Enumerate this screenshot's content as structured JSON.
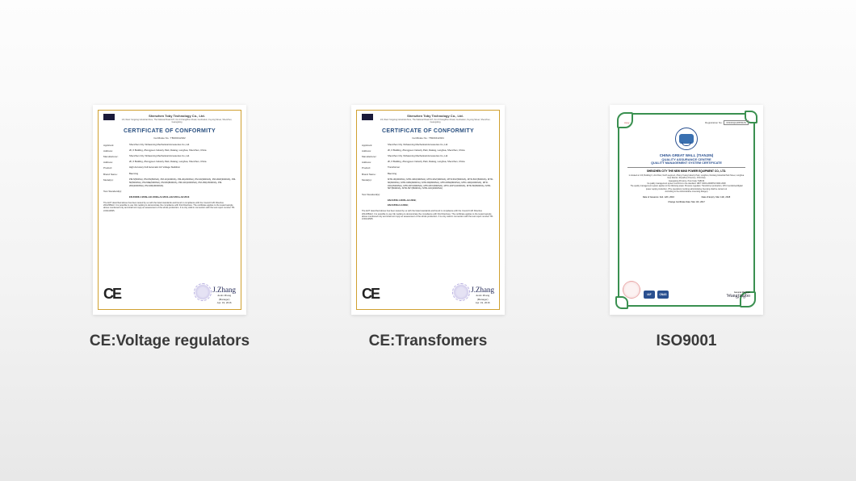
{
  "page": {
    "background_gradient": [
      "#fdfdfd",
      "#e8e8e8"
    ]
  },
  "certificates": [
    {
      "caption": "CE:Voltage regulators",
      "type": "ce",
      "border_color": "#d0a030",
      "company_name": "Shenzhen Toby Technology Co., Ltd.",
      "company_addr": "1/F, West Yongxing Industrial Zone, The National Road 107, No.4 ChangZhen Road, Guohualun, Fuyong Street, Shenzhen, Guangdong",
      "title": "CERTIFICATE OF CONFORMITY",
      "title_color": "#2a5080",
      "cert_no_label": "Certificate No.:",
      "cert_no": "TB160412022",
      "fields": [
        {
          "label": "Applicant:",
          "value": "Shenzhen City Xinbaoming Mechanical Accessories Co.,Ltd."
        },
        {
          "label": "Address:",
          "value": "2F, 6 Building, Zhongyuen Industry Park, Dalang, Longhua, Shenzhen, China"
        },
        {
          "label": "Manufacturer:",
          "value": "Shenzhen City Xinbaoming Mechanical Accessories Co.,Ltd."
        },
        {
          "label": "Address:",
          "value": "2F, 6 Building, Zhongyuen Industry Park, Dalang, Longhua, Shenzhen, China"
        },
        {
          "label": "Product:",
          "value": "High Accuracy Full Automatic AC Voltage Stabilizer"
        },
        {
          "label": "Brand Name:",
          "value": "Baoming"
        },
        {
          "label": "Model(s):",
          "value": "PM-5(500VA), PM-5N(500VA), PM-10(1000VA), PM-20(2000VA), PM-30(3000VA), PM-30W(3000VA), PM-50(5000VA), PM-50E(5000VA), PM-80(8000VA), PM-100(10000VA), PM-150(15000VA), PM-200(20000VA), PM-300(30000VA)"
        },
        {
          "label": "Test Standard(s):",
          "value": ""
        },
        {
          "label": "",
          "value": "EN 60068-1:2009+A11:2009+A1:2010+A12:2011+A2:2013"
        }
      ],
      "paragraph": "The EUT described above has been tested by us with the listed standards and found in compliance with the Council LVD Directive 2014/35/EU. It is possible to use CE marking to demonstrate the compliance with this Directives. The certificate applies to the tested sample above mentioned only and shall not imply an assessment of the whole production. It is only valid in connection with the test report number TB-LVD141565.",
      "ce_mark": "CE",
      "signer_name": "Justin Zhang",
      "signer_title": "(Manager)",
      "sign_date": "Apr. 19, 2016",
      "signature": "J.Zhang"
    },
    {
      "caption": "CE:Transfomers",
      "type": "ce",
      "border_color": "#d0a030",
      "company_name": "Shenzhen Toby Technology Co., Ltd.",
      "company_addr": "1/F, West Yongxing Industrial Zone, The National Road 107, No.4 ChangZhen Road, Guohualun, Fuyong Street, Shenzhen, Guangdong",
      "title": "CERTIFICATE OF CONFORMITY",
      "title_color": "#2a5090",
      "cert_no_label": "Certificate No.:",
      "cert_no": "TB160412024",
      "fields": [
        {
          "label": "Applicant:",
          "value": "Shenzhen City Xinbaoming Mechanical Accessories Co.,Ltd."
        },
        {
          "label": "Address:",
          "value": "2F, 6 Building, Zhongyuen Industry Park, Dalang, Longhua, Shenzhen, China"
        },
        {
          "label": "Manufacturer:",
          "value": "Shenzhen City Xinbaoming Mechanical Accessories Co.,Ltd."
        },
        {
          "label": "Address:",
          "value": "2F, 6 Building, Zhongyuen Industry Park, Dalang, Longhua, Shenzhen, China"
        },
        {
          "label": "Product:",
          "value": "Transformer"
        },
        {
          "label": "Brand Name:",
          "value": "Baoming"
        },
        {
          "label": "Model(s):",
          "value": "MTD-30(3000VA), MTD-30N(3000VA), MTD-30V(3000VA), MTD-50V(5000VA), MTD-50V(5000VA), MTD-60(6000VA), MTD-60W(6000VA), MTD-80(8000VA), MTD-80W(8000VA), MTD-100(10000VA), MTD-150(15000VA), MTD-80Y(8000VA), MTD-80Y(8000VA), MTD-100Y(10000VA), MTD-50(5000VA), MTD-50T(5000VA), MTD-50Y(5000VA), MTD-100(10000VA)"
        },
        {
          "label": "Test Standard(s):",
          "value": ""
        },
        {
          "label": "",
          "value": "EN 61558-1:2005+A1:2009;"
        },
        {
          "label": "",
          "value": "EN 61558-2-4:2009;"
        }
      ],
      "paragraph": "The EUT described above has been tested by us with the listed standards and found in compliance with the Council LVD Directive 2014/35/EU. It is possible to use CE marking to demonstrate the compliance with this Directives. The certificate applies to the tested sample above mentioned only and shall not imply an assessment of the whole production. It is only valid in connection with the test report number TB-LVD141565.",
      "ce_mark": "CE",
      "signer_name": "Justin Zhang",
      "signer_title": "(Manager)",
      "sign_date": "Apr. 19, 2016",
      "signature": "J.Zhang"
    },
    {
      "caption": "ISO9001",
      "type": "iso",
      "border_color": "#3a9050",
      "copy_label": "copy",
      "reg_label": "Registration No.:",
      "reg_no": "00916Q11887R2S",
      "heading1": "CHINA GREAT WALL (TIANJIN)",
      "heading2": "QUALITY ASSURANCE CENTRE",
      "heading3": "QUALITY MANAGEMENT SYSTEM CERTIFICATE",
      "company": "SHENZHEN CITY THE NEW MING POWER EQUIPMENT CO., LTD.",
      "body_lines": [
        "is located at: 2/F, Building 6, 2nd Floor, North segment, Zhong Yuang Industry Park, LongKou, Donlang Industrial Park Street, Longhua New District, ShenZhen Province, P.R.China",
        "Guangdong Province.   Post Code: 518109",
        "Its quality management system conforms to the standard: GB/T 19001-2008/ISO 9001:2008",
        "The quality management system applies to the following areas: Pressure regulator, Transformer production, CPU Centralized/digital power supply production, (The operations involving administrative licensing shall be carried out",
        "According to the Administrative Licensing Ranger)"
      ],
      "date_first_label": "Date of Issuance:",
      "date_first": "Feb. 12th, 2016",
      "date_exp_label": "Date of Expiry:",
      "date_exp": "Mar. 11th, 2018",
      "change_label": "Change Certificate Date:",
      "change_date": "Mar. 4th, 2017",
      "gm_label": "General Manager",
      "gm_sign": "Wangjingbo",
      "badges": [
        {
          "text": "IAF",
          "bg": "#2a5090"
        },
        {
          "text": "CNAS",
          "bg": "#2a5090"
        }
      ],
      "footer_addr": "China Great Wall (Tianjin) Quality Assurance Centre"
    }
  ]
}
